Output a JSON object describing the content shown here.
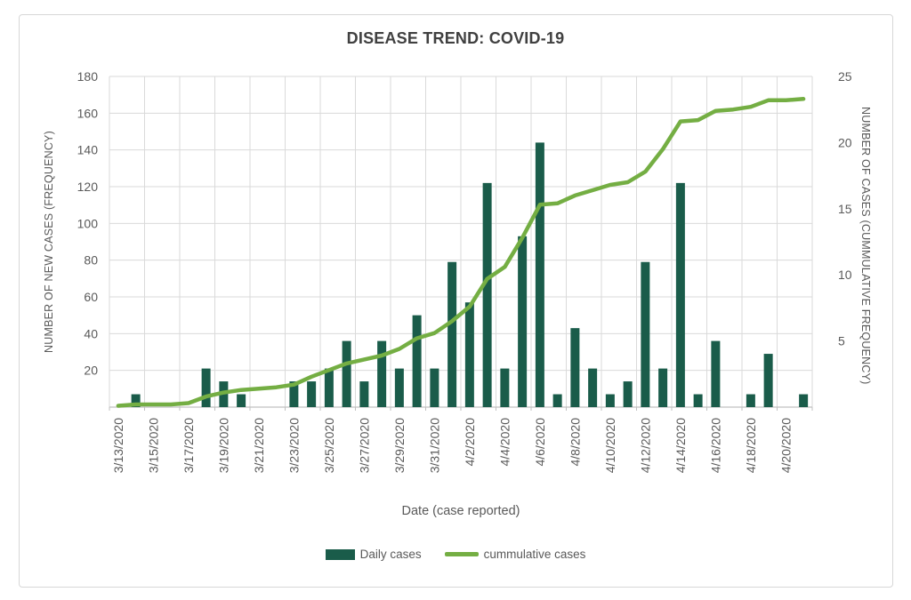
{
  "colors": {
    "bar": "#1A5C4A",
    "line": "#74AE43",
    "grid": "#DADADA",
    "axis": "#C0C0C0",
    "text": "#595959",
    "title": "#404040"
  },
  "chart_data": {
    "type": "combo-bar-line",
    "title": "DISEASE TREND: COVID-19",
    "xlabel": "Date (case reported)",
    "ylabel_left": "NUMBER OF NEW CASES (FREQUENCY)",
    "ylabel_right": "NUMBER OF CASES (CUMMULATIVE FREQUENCY)",
    "label_every": 2,
    "grid": true,
    "legend_position": "bottom",
    "categories": [
      "3/13/2020",
      "3/14/2020",
      "3/15/2020",
      "3/16/2020",
      "3/17/2020",
      "3/18/2020",
      "3/19/2020",
      "3/20/2020",
      "3/21/2020",
      "3/22/2020",
      "3/23/2020",
      "3/24/2020",
      "3/25/2020",
      "3/26/2020",
      "3/27/2020",
      "3/28/2020",
      "3/29/2020",
      "3/30/2020",
      "3/31/2020",
      "4/1/2020",
      "4/2/2020",
      "4/3/2020",
      "4/4/2020",
      "4/5/2020",
      "4/6/2020",
      "4/7/2020",
      "4/8/2020",
      "4/9/2020",
      "4/10/2020",
      "4/11/2020",
      "4/12/2020",
      "4/13/2020",
      "4/14/2020",
      "4/15/2020",
      "4/16/2020",
      "4/17/2020",
      "4/18/2020",
      "4/19/2020",
      "4/20/2020",
      "4/21/2020"
    ],
    "series": [
      {
        "name": "Daily cases",
        "type": "bar",
        "axis": "left",
        "color": "#1A5C4A",
        "values": [
          0,
          7,
          0,
          0,
          0,
          21,
          14,
          7,
          0,
          0,
          14,
          14,
          21,
          36,
          14,
          36,
          21,
          50,
          21,
          79,
          57,
          122,
          21,
          93,
          144,
          7,
          43,
          21,
          7,
          14,
          79,
          21,
          122,
          7,
          36,
          0,
          7,
          29,
          0,
          7
        ]
      },
      {
        "name": "cummulative cases",
        "type": "line",
        "axis": "right",
        "color": "#74AE43",
        "values": [
          0.1,
          0.2,
          0.2,
          0.2,
          0.3,
          0.8,
          1.1,
          1.3,
          1.4,
          1.5,
          1.7,
          2.3,
          2.8,
          3.3,
          3.6,
          3.9,
          4.4,
          5.2,
          5.6,
          6.5,
          7.6,
          9.7,
          10.6,
          12.8,
          15.3,
          15.4,
          16,
          16.4,
          16.8,
          17,
          17.8,
          19.5,
          21.6,
          21.7,
          22.4,
          22.5,
          22.7,
          23.2,
          23.2,
          23.3
        ]
      }
    ],
    "axes": {
      "left": {
        "min": 0,
        "max": 180,
        "ticks": [
          20,
          40,
          60,
          80,
          100,
          120,
          140,
          160,
          180
        ]
      },
      "right": {
        "min": 0,
        "max": 25,
        "ticks": [
          5,
          10,
          15,
          20,
          25
        ]
      }
    }
  }
}
